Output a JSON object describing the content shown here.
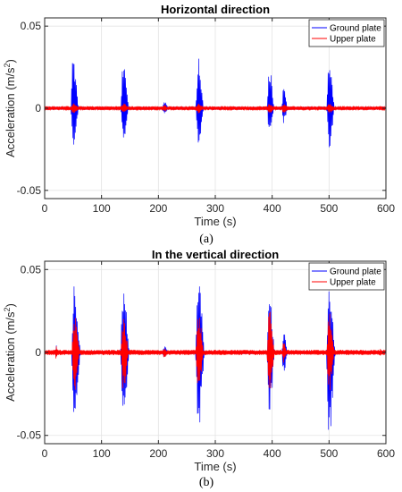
{
  "chart_data": [
    {
      "type": "line",
      "title": "Horizontal direction",
      "xlabel": "Time (s)",
      "ylabel_main": "Acceleration (m/s",
      "ylabel_sup": "2",
      "ylabel_close": ")",
      "xlim": [
        0,
        600
      ],
      "ylim": [
        -0.055,
        0.055
      ],
      "xticks": [
        0,
        100,
        200,
        300,
        400,
        500,
        600
      ],
      "xtick_labels": [
        "0",
        "100",
        "200",
        "300",
        "400",
        "500",
        "600"
      ],
      "yticks": [
        -0.05,
        0,
        0.05
      ],
      "ytick_labels": [
        "-0.05",
        "0",
        "0.05"
      ],
      "grid": true,
      "legend_position": "top-right",
      "caption": "(a)",
      "series": [
        {
          "name": "Ground plate",
          "color": "#0000ff",
          "baseline_amplitude": 0.0008,
          "bursts": [
            {
              "t": 50,
              "pos": 0.034,
              "neg": -0.024,
              "width": 7
            },
            {
              "t": 138,
              "pos": 0.031,
              "neg": -0.023,
              "width": 7
            },
            {
              "t": 210,
              "pos": 0.004,
              "neg": -0.003,
              "width": 6
            },
            {
              "t": 270,
              "pos": 0.033,
              "neg": -0.024,
              "width": 7
            },
            {
              "t": 395,
              "pos": 0.026,
              "neg": -0.017,
              "width": 6
            },
            {
              "t": 420,
              "pos": 0.012,
              "neg": -0.009,
              "width": 5
            },
            {
              "t": 500,
              "pos": 0.035,
              "neg": -0.026,
              "width": 7
            }
          ]
        },
        {
          "name": "Upper plate",
          "color": "#ff0000",
          "baseline_amplitude": 0.0012,
          "bursts": [
            {
              "t": 50,
              "pos": 0.003,
              "neg": -0.003,
              "width": 8
            },
            {
              "t": 138,
              "pos": 0.003,
              "neg": -0.003,
              "width": 8
            },
            {
              "t": 210,
              "pos": 0.002,
              "neg": -0.002,
              "width": 6
            },
            {
              "t": 270,
              "pos": 0.003,
              "neg": -0.003,
              "width": 8
            },
            {
              "t": 395,
              "pos": 0.003,
              "neg": -0.003,
              "width": 7
            },
            {
              "t": 420,
              "pos": 0.003,
              "neg": -0.003,
              "width": 6
            },
            {
              "t": 500,
              "pos": 0.003,
              "neg": -0.003,
              "width": 8
            }
          ]
        }
      ]
    },
    {
      "type": "line",
      "title": "In the vertical direction",
      "xlabel": "Time (s)",
      "ylabel_main": "Acceleration (m/s",
      "ylabel_sup": "2",
      "ylabel_close": ")",
      "xlim": [
        0,
        600
      ],
      "ylim": [
        -0.055,
        0.055
      ],
      "xticks": [
        0,
        100,
        200,
        300,
        400,
        500,
        600
      ],
      "xtick_labels": [
        "0",
        "100",
        "200",
        "300",
        "400",
        "500",
        "600"
      ],
      "yticks": [
        -0.05,
        0,
        0.05
      ],
      "ytick_labels": [
        "-0.05",
        "0",
        "0.05"
      ],
      "grid": true,
      "legend_position": "top-right",
      "caption": "(b)",
      "series": [
        {
          "name": "Ground plate",
          "color": "#0000ff",
          "baseline_amplitude": 0.0009,
          "bursts": [
            {
              "t": 20,
              "pos": 0.005,
              "neg": -0.004,
              "width": 2
            },
            {
              "t": 52,
              "pos": 0.043,
              "neg": -0.044,
              "width": 8
            },
            {
              "t": 138,
              "pos": 0.041,
              "neg": -0.043,
              "width": 8
            },
            {
              "t": 210,
              "pos": 0.004,
              "neg": -0.003,
              "width": 6
            },
            {
              "t": 270,
              "pos": 0.054,
              "neg": -0.047,
              "width": 8
            },
            {
              "t": 395,
              "pos": 0.032,
              "neg": -0.039,
              "width": 7
            },
            {
              "t": 420,
              "pos": 0.013,
              "neg": -0.013,
              "width": 5
            },
            {
              "t": 500,
              "pos": 0.04,
              "neg": -0.052,
              "width": 8
            }
          ]
        },
        {
          "name": "Upper plate",
          "color": "#ff0000",
          "baseline_amplitude": 0.0015,
          "bursts": [
            {
              "t": 20,
              "pos": 0.006,
              "neg": -0.005,
              "width": 2
            },
            {
              "t": 52,
              "pos": 0.024,
              "neg": -0.024,
              "width": 7
            },
            {
              "t": 138,
              "pos": 0.022,
              "neg": -0.023,
              "width": 7
            },
            {
              "t": 210,
              "pos": 0.003,
              "neg": -0.003,
              "width": 5
            },
            {
              "t": 270,
              "pos": 0.025,
              "neg": -0.024,
              "width": 7
            },
            {
              "t": 395,
              "pos": 0.026,
              "neg": -0.026,
              "width": 7
            },
            {
              "t": 420,
              "pos": 0.007,
              "neg": -0.006,
              "width": 4
            },
            {
              "t": 500,
              "pos": 0.025,
              "neg": -0.024,
              "width": 7
            },
            {
              "t": 590,
              "pos": 0.003,
              "neg": -0.003,
              "width": 2
            }
          ]
        }
      ]
    }
  ]
}
